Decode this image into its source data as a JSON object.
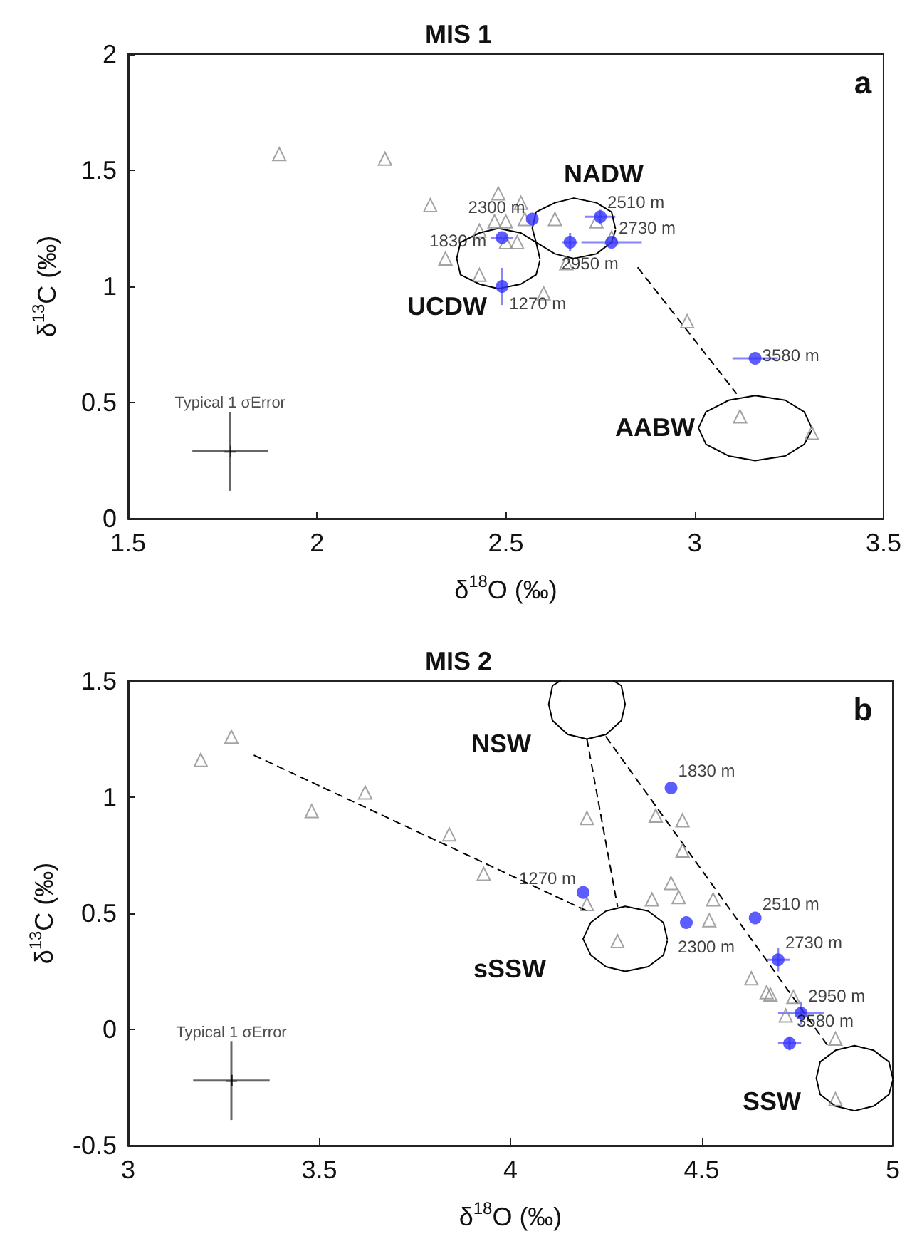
{
  "chart_data": [
    {
      "type": "scatter",
      "title": "MIS 1",
      "xlabel": "δ$^{18}$O (‰)",
      "ylabel": "δ$^{13}$C (‰)",
      "xlim": [
        1.5,
        3.5
      ],
      "xticks": [
        1.5,
        2,
        2.5,
        3,
        3.5
      ],
      "ylim": [
        0,
        2
      ],
      "yticks": [
        0,
        0.5,
        1,
        1.5,
        2
      ],
      "annotations": [
        "NADW",
        "UCDW",
        "AABW",
        "a",
        {
          "text": "1270 m",
          "x": 2.49,
          "y": 1.0
        },
        {
          "text": "1830 m",
          "x": 2.49,
          "y": 1.21
        },
        {
          "text": "2300 m",
          "x": 2.57,
          "y": 1.29
        },
        {
          "text": "2510 m",
          "x": 2.75,
          "y": 1.3
        },
        {
          "text": "2730 m",
          "x": 2.78,
          "y": 1.19
        },
        {
          "text": "2950 m",
          "x": 2.67,
          "y": 1.19
        },
        {
          "text": "3580 m",
          "x": 3.16,
          "y": 0.69
        }
      ],
      "series": [
        {
          "type": "scatter",
          "marker": "triangle",
          "color": "#8c8c8c",
          "x": [
            1.9,
            2.18,
            2.3,
            2.48,
            2.54,
            2.43,
            2.47,
            2.5,
            2.55,
            2.34,
            2.43,
            2.5,
            2.53,
            2.63,
            2.74,
            2.66,
            2.6,
            2.78,
            2.98,
            3.12,
            3.31
          ],
          "values": [
            1.57,
            1.55,
            1.35,
            1.4,
            1.36,
            1.24,
            1.28,
            1.28,
            1.29,
            1.12,
            1.05,
            1.19,
            1.19,
            1.29,
            1.28,
            1.1,
            0.97,
            1.21,
            0.85,
            0.44,
            0.37
          ]
        },
        {
          "type": "line",
          "line_style": "solid",
          "color": "#000000",
          "x": [
            2.59,
            2.58,
            2.54,
            2.48,
            2.43,
            2.38,
            2.37,
            2.38,
            2.43,
            2.48,
            2.54,
            2.58,
            2.59
          ],
          "values": [
            1.12,
            1.19,
            1.23,
            1.25,
            1.23,
            1.19,
            1.12,
            1.05,
            1.01,
            0.99,
            1.01,
            1.05,
            1.11
          ]
        },
        {
          "type": "line",
          "line_style": "solid",
          "color": "#000000",
          "x": [
            2.79,
            2.78,
            2.74,
            2.68,
            2.63,
            2.58,
            2.57,
            2.58,
            2.63,
            2.68,
            2.74,
            2.78,
            2.79
          ],
          "values": [
            1.25,
            1.32,
            1.36,
            1.38,
            1.36,
            1.32,
            1.25,
            1.19,
            1.14,
            1.12,
            1.14,
            1.19,
            1.24
          ]
        },
        {
          "type": "line",
          "line_style": "solid",
          "color": "#000000",
          "x": [
            3.31,
            3.29,
            3.24,
            3.16,
            3.09,
            3.03,
            3.01,
            3.03,
            3.09,
            3.16,
            3.24,
            3.29,
            3.31
          ],
          "values": [
            0.39,
            0.46,
            0.51,
            0.53,
            0.51,
            0.46,
            0.39,
            0.32,
            0.27,
            0.25,
            0.27,
            0.32,
            0.38
          ]
        },
        {
          "type": "line",
          "line_style": "dashed",
          "color": "#000000",
          "x": [
            2.85,
            3.11
          ],
          "values": [
            1.08,
            0.54
          ]
        },
        {
          "type": "scatter",
          "marker": "cross",
          "name": "Typical 1 σError",
          "color": "#000000",
          "x": [
            1.77
          ],
          "values": [
            0.29
          ],
          "errors": [
            0.17
          ],
          "xerrors": [
            0.1
          ]
        },
        {
          "type": "scatter",
          "marker": "circle",
          "color": "#3333ff",
          "x": [
            2.49,
            2.49,
            2.57,
            2.75,
            2.78,
            2.67,
            3.16
          ],
          "values": [
            1.0,
            1.21,
            1.29,
            1.3,
            1.19,
            1.19,
            0.69
          ],
          "errors": [
            0.08,
            null,
            null,
            0.03,
            null,
            0.04,
            null
          ],
          "xerrors": [
            null,
            0.03,
            null,
            0.04,
            0.08,
            0.02,
            0.06
          ]
        }
      ]
    },
    {
      "type": "scatter",
      "title": "MIS 2",
      "xlabel": "δ$^{18}$O (‰)",
      "ylabel": "δ$^{13}$C (‰)",
      "xlim": [
        3,
        5
      ],
      "xticks": [
        3,
        3.5,
        4,
        4.5,
        5
      ],
      "ylim": [
        -0.5,
        1.5
      ],
      "yticks": [
        -0.5,
        0,
        0.5,
        1,
        1.5
      ],
      "annotations": [
        "NSW",
        "sSSW",
        "SSW",
        "b",
        {
          "text": "1270 m",
          "x": 4.19,
          "y": 0.59
        },
        {
          "text": "1830 m",
          "x": 4.42,
          "y": 1.04
        },
        {
          "text": "2300 m",
          "x": 4.46,
          "y": 0.46
        },
        {
          "text": "2510 m",
          "x": 4.64,
          "y": 0.48
        },
        {
          "text": "2730 m",
          "x": 4.7,
          "y": 0.3
        },
        {
          "text": "2950 m",
          "x": 4.76,
          "y": 0.07
        },
        {
          "text": "3580 m",
          "x": 4.73,
          "y": -0.06
        }
      ],
      "series": [
        {
          "type": "scatter",
          "marker": "triangle",
          "color": "#8c8c8c",
          "x": [
            3.27,
            3.19,
            3.48,
            3.62,
            3.84,
            3.93,
            4.2,
            4.38,
            4.45,
            4.45,
            4.2,
            4.28,
            4.37,
            4.42,
            4.44,
            4.53,
            4.52,
            4.63,
            4.67,
            4.68,
            4.74,
            4.72,
            4.85,
            4.85
          ],
          "values": [
            1.26,
            1.16,
            0.94,
            1.02,
            0.84,
            0.67,
            0.91,
            0.92,
            0.9,
            0.77,
            0.54,
            0.38,
            0.56,
            0.63,
            0.57,
            0.56,
            0.47,
            0.22,
            0.16,
            0.15,
            0.14,
            0.06,
            -0.04,
            -0.3
          ]
        },
        {
          "type": "line",
          "line_style": "solid",
          "color": "#000000",
          "x": [
            4.13,
            4.11,
            4.1,
            4.11,
            4.15,
            4.2,
            4.25,
            4.29,
            4.3,
            4.29,
            4.27
          ],
          "values": [
            1.5,
            1.48,
            1.4,
            1.33,
            1.27,
            1.25,
            1.27,
            1.33,
            1.4,
            1.48,
            1.5
          ]
        },
        {
          "type": "line",
          "line_style": "solid",
          "color": "#000000",
          "x": [
            4.41,
            4.4,
            4.36,
            4.3,
            4.25,
            4.21,
            4.19,
            4.21,
            4.25,
            4.3,
            4.36,
            4.4,
            4.41
          ],
          "values": [
            0.39,
            0.46,
            0.51,
            0.53,
            0.51,
            0.46,
            0.39,
            0.32,
            0.27,
            0.25,
            0.27,
            0.32,
            0.38
          ]
        },
        {
          "type": "line",
          "line_style": "solid",
          "color": "#000000",
          "x": [
            5.0,
            4.99,
            4.95,
            4.9,
            4.85,
            4.81,
            4.8,
            4.81,
            4.85,
            4.9,
            4.95,
            4.99,
            5.0
          ],
          "values": [
            -0.21,
            -0.14,
            -0.09,
            -0.07,
            -0.09,
            -0.14,
            -0.21,
            -0.28,
            -0.33,
            -0.35,
            -0.33,
            -0.28,
            -0.22
          ]
        },
        {
          "type": "line",
          "line_style": "dashed",
          "color": "#000000",
          "x": [
            3.33,
            4.2
          ],
          "values": [
            1.18,
            0.51
          ]
        },
        {
          "type": "line",
          "line_style": "dashed",
          "color": "#000000",
          "x": [
            4.2,
            4.28
          ],
          "values": [
            1.25,
            0.53
          ]
        },
        {
          "type": "line",
          "line_style": "dashed",
          "color": "#000000",
          "x": [
            4.25,
            4.83
          ],
          "values": [
            1.26,
            -0.07
          ]
        },
        {
          "type": "scatter",
          "marker": "cross",
          "name": "Typical 1 σError",
          "color": "#000000",
          "x": [
            3.27
          ],
          "values": [
            -0.22
          ],
          "errors": [
            0.17
          ],
          "xerrors": [
            0.1
          ]
        },
        {
          "type": "scatter",
          "marker": "circle",
          "color": "#3333ff",
          "x": [
            4.19,
            4.42,
            4.46,
            4.64,
            4.7,
            4.76,
            4.73
          ],
          "values": [
            0.59,
            1.04,
            0.46,
            0.48,
            0.3,
            0.07,
            -0.06
          ],
          "errors": [
            null,
            null,
            null,
            null,
            0.05,
            0.05,
            0.03
          ],
          "xerrors": [
            null,
            null,
            null,
            null,
            0.03,
            0.06,
            0.03
          ]
        }
      ]
    }
  ]
}
